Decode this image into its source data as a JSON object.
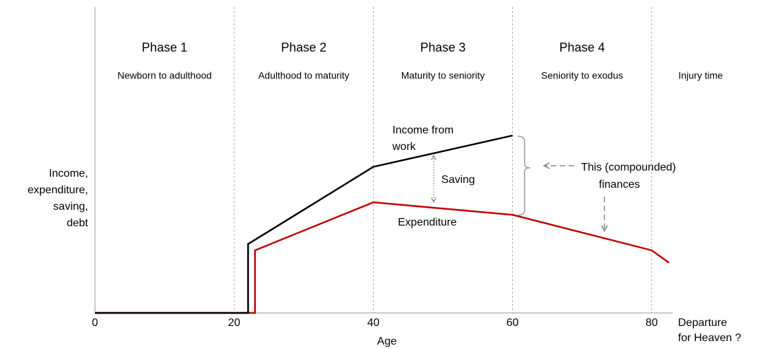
{
  "chart_data": {
    "type": "line",
    "phases": [
      {
        "title": "Phase 1",
        "description": "Newborn to adulthood"
      },
      {
        "title": "Phase 2",
        "description": "Adulthood to maturity"
      },
      {
        "title": "Phase 3",
        "description": "Maturity to seniority"
      },
      {
        "title": "Phase 4",
        "description": "Seniority to exodus"
      },
      {
        "description": "Injury time"
      }
    ],
    "ylabel": [
      "Income,",
      "expenditure,",
      "saving,",
      "debt"
    ],
    "xlabel": "Age",
    "x_end_label": [
      "Departure",
      "for Heaven ?"
    ],
    "xlim": [
      0,
      83
    ],
    "xticks": [
      0,
      20,
      40,
      60,
      80
    ],
    "ylim": [
      0,
      145
    ],
    "grid": true,
    "series": [
      {
        "name": "Expenditure",
        "color": "#c00000",
        "x": [
          0,
          23,
          23,
          40,
          60,
          80,
          82.5
        ],
        "values": [
          0,
          0,
          30,
          53,
          47,
          30,
          24
        ]
      },
      {
        "name": "Income from work",
        "color": "#000000",
        "x": [
          0,
          22,
          22,
          40,
          60
        ],
        "values": [
          0,
          0,
          33,
          70,
          85
        ]
      }
    ],
    "annotations": {
      "income": [
        "Income from",
        "work"
      ],
      "saving": "Saving",
      "expenditure": "Expenditure",
      "finances": [
        "This (compounded)",
        "finances"
      ]
    }
  }
}
